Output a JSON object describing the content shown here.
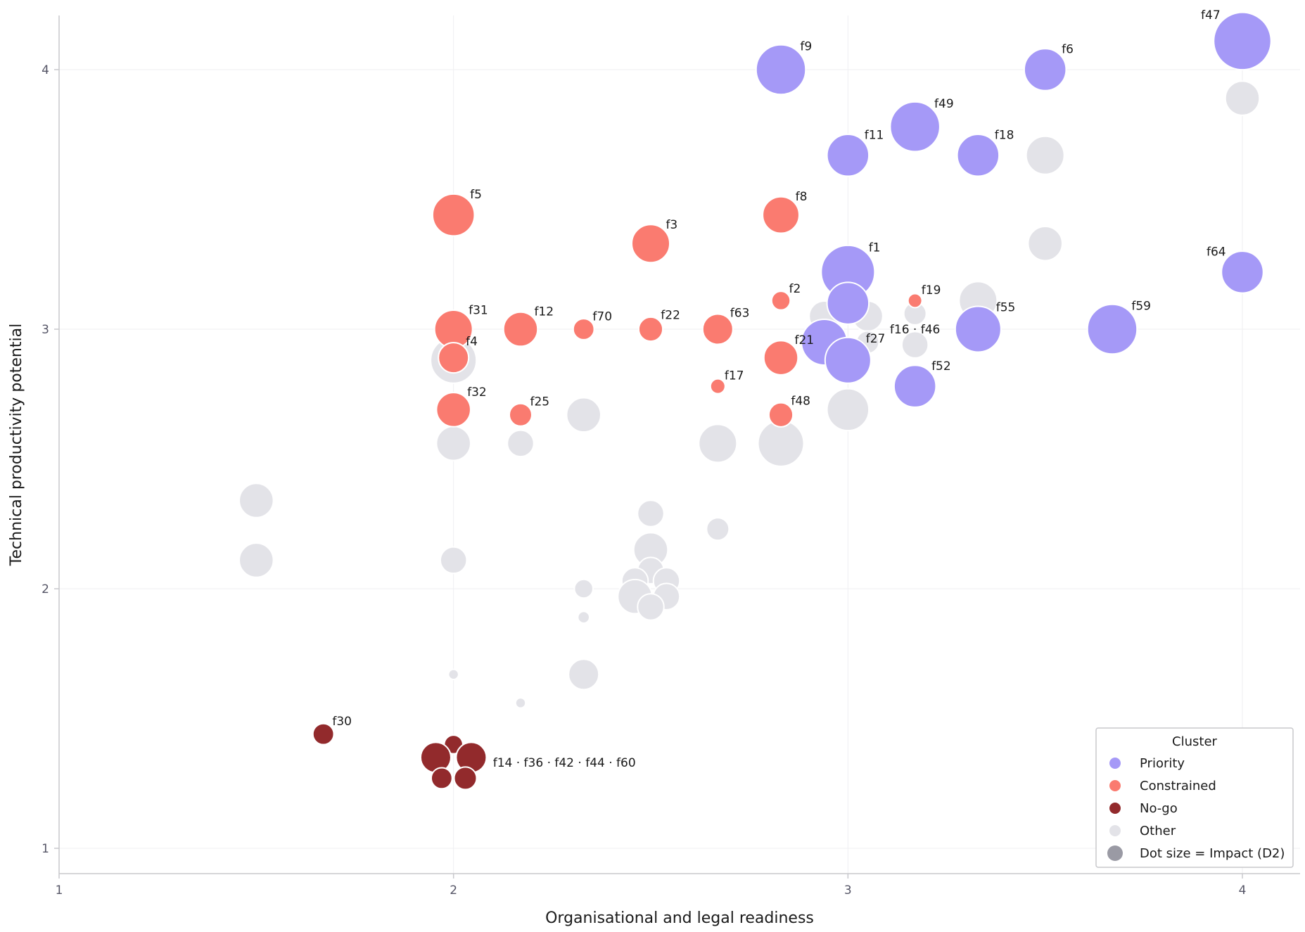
{
  "chart_data": {
    "type": "scatter",
    "xlabel": "Organisational and legal readiness",
    "ylabel": "Technical productivity potential",
    "xlim": [
      1,
      4.15
    ],
    "ylim": [
      0.9,
      4.2
    ],
    "xticks": [
      1,
      2,
      3,
      4
    ],
    "yticks": [
      1,
      2,
      3,
      4
    ],
    "grid": true,
    "size_encoding": "Impact (D2)",
    "colors": {
      "Priority": "#a599f7",
      "Constrained": "#fa7b70",
      "No-go": "#922a2c",
      "Other": "#e3e3e8"
    },
    "legend": {
      "title": "Cluster",
      "position": "bottom-right",
      "items": [
        {
          "label": "Priority",
          "cluster": "Priority"
        },
        {
          "label": "Constrained",
          "cluster": "Constrained"
        },
        {
          "label": "No-go",
          "cluster": "No-go"
        },
        {
          "label": "Other",
          "cluster": "Other"
        },
        {
          "label": "Dot size = Impact (D2)",
          "cluster": "size"
        }
      ]
    },
    "points": [
      {
        "x": 2.0,
        "y": 2.88,
        "s": 5,
        "cluster": "Other"
      },
      {
        "x": 2.0,
        "y": 2.56,
        "s": 3.5,
        "cluster": "Other"
      },
      {
        "x": 2.0,
        "y": 2.11,
        "s": 2.5,
        "cluster": "Other"
      },
      {
        "x": 2.0,
        "y": 1.67,
        "s": 0.4,
        "cluster": "Other"
      },
      {
        "x": 1.5,
        "y": 2.34,
        "s": 3.5,
        "cluster": "Other"
      },
      {
        "x": 1.5,
        "y": 2.11,
        "s": 3.5,
        "cluster": "Other"
      },
      {
        "x": 2.17,
        "y": 2.56,
        "s": 2.5,
        "cluster": "Other"
      },
      {
        "x": 2.17,
        "y": 1.56,
        "s": 0.4,
        "cluster": "Other"
      },
      {
        "x": 2.33,
        "y": 2.67,
        "s": 3.5,
        "cluster": "Other"
      },
      {
        "x": 2.33,
        "y": 2.0,
        "s": 1.5,
        "cluster": "Other"
      },
      {
        "x": 2.33,
        "y": 1.89,
        "s": 0.6,
        "cluster": "Other"
      },
      {
        "x": 2.33,
        "y": 1.67,
        "s": 3,
        "cluster": "Other"
      },
      {
        "x": 2.5,
        "y": 2.29,
        "s": 2.5,
        "cluster": "Other"
      },
      {
        "x": 2.5,
        "y": 2.15,
        "s": 3.5,
        "cluster": "Other"
      },
      {
        "x": 2.5,
        "y": 2.07,
        "s": 2.5,
        "cluster": "Other"
      },
      {
        "x": 2.46,
        "y": 2.03,
        "s": 2.5,
        "cluster": "Other"
      },
      {
        "x": 2.54,
        "y": 2.03,
        "s": 2.5,
        "cluster": "Other"
      },
      {
        "x": 2.46,
        "y": 1.97,
        "s": 3.5,
        "cluster": "Other"
      },
      {
        "x": 2.54,
        "y": 1.97,
        "s": 2.5,
        "cluster": "Other"
      },
      {
        "x": 2.5,
        "y": 1.93,
        "s": 2.5,
        "cluster": "Other"
      },
      {
        "x": 2.67,
        "y": 2.56,
        "s": 4,
        "cluster": "Other"
      },
      {
        "x": 2.67,
        "y": 2.23,
        "s": 2,
        "cluster": "Other"
      },
      {
        "x": 2.83,
        "y": 2.56,
        "s": 5,
        "cluster": "Other"
      },
      {
        "x": 2.94,
        "y": 3.05,
        "s": 3,
        "cluster": "Other"
      },
      {
        "x": 3.0,
        "y": 2.69,
        "s": 4.5,
        "cluster": "Other"
      },
      {
        "x": 3.05,
        "y": 3.05,
        "s": 3,
        "cluster": "Other"
      },
      {
        "x": 3.05,
        "y": 2.95,
        "s": 2,
        "cluster": "Other"
      },
      {
        "x": 3.17,
        "y": 3.06,
        "s": 2,
        "cluster": "Other"
      },
      {
        "x": 3.17,
        "y": 2.94,
        "s": 2.5,
        "cluster": "Other"
      },
      {
        "x": 3.33,
        "y": 3.11,
        "s": 4,
        "cluster": "Other"
      },
      {
        "x": 3.5,
        "y": 3.67,
        "s": 4,
        "cluster": "Other"
      },
      {
        "x": 3.5,
        "y": 3.33,
        "s": 3.5,
        "cluster": "Other"
      },
      {
        "x": 4.0,
        "y": 3.89,
        "s": 3.5,
        "cluster": "Other"
      },
      {
        "x": 4.0,
        "y": 4.11,
        "s": 6.5,
        "cluster": "Priority",
        "label": "f47",
        "lpos": "tl"
      },
      {
        "x": 2.83,
        "y": 4.0,
        "s": 5.5,
        "cluster": "Priority",
        "label": "f9",
        "lpos": "tr"
      },
      {
        "x": 3.5,
        "y": 4.0,
        "s": 4.5,
        "cluster": "Priority",
        "label": "f6",
        "lpos": "tr"
      },
      {
        "x": 3.17,
        "y": 3.78,
        "s": 5.5,
        "cluster": "Priority",
        "label": "f49",
        "lpos": "tr"
      },
      {
        "x": 3.0,
        "y": 3.67,
        "s": 4.5,
        "cluster": "Priority",
        "label": "f11",
        "lpos": "tr"
      },
      {
        "x": 3.33,
        "y": 3.67,
        "s": 4.5,
        "cluster": "Priority",
        "label": "f18",
        "lpos": "tr"
      },
      {
        "x": 4.0,
        "y": 3.22,
        "s": 4.5,
        "cluster": "Priority",
        "label": "f64",
        "lpos": "tl"
      },
      {
        "x": 3.0,
        "y": 3.22,
        "s": 6,
        "cluster": "Priority",
        "label": "f1",
        "lpos": "tr"
      },
      {
        "x": 3.0,
        "y": 3.1,
        "s": 4.5,
        "cluster": "Priority"
      },
      {
        "x": 3.33,
        "y": 3.0,
        "s": 5,
        "cluster": "Priority",
        "label": "f55",
        "lpos": "tr"
      },
      {
        "x": 3.67,
        "y": 3.0,
        "s": 5.5,
        "cluster": "Priority",
        "label": "f59",
        "lpos": "tr"
      },
      {
        "x": 2.94,
        "y": 2.95,
        "s": 5,
        "cluster": "Priority"
      },
      {
        "x": 3.0,
        "y": 2.88,
        "s": 5,
        "cluster": "Priority",
        "label": "f27",
        "lpos": "tr"
      },
      {
        "x": 3.17,
        "y": 2.78,
        "s": 4.5,
        "cluster": "Priority",
        "label": "f52",
        "lpos": "tr"
      },
      {
        "x": 2.0,
        "y": 3.44,
        "s": 4.5,
        "cluster": "Constrained",
        "label": "f5",
        "lpos": "tr"
      },
      {
        "x": 2.83,
        "y": 3.44,
        "s": 3.8,
        "cluster": "Constrained",
        "label": "f8",
        "lpos": "tr"
      },
      {
        "x": 2.5,
        "y": 3.33,
        "s": 4,
        "cluster": "Constrained",
        "label": "f3",
        "lpos": "tr"
      },
      {
        "x": 2.83,
        "y": 3.11,
        "s": 1.5,
        "cluster": "Constrained",
        "label": "f2",
        "lpos": "tr"
      },
      {
        "x": 3.17,
        "y": 3.11,
        "s": 0.9,
        "cluster": "Constrained",
        "label": "f19",
        "lpos": "tr"
      },
      {
        "x": 2.0,
        "y": 3.0,
        "s": 4,
        "cluster": "Constrained",
        "label": "f31",
        "lpos": "tr"
      },
      {
        "x": 2.17,
        "y": 3.0,
        "s": 3.5,
        "cluster": "Constrained",
        "label": "f12",
        "lpos": "tr"
      },
      {
        "x": 2.33,
        "y": 3.0,
        "s": 1.8,
        "cluster": "Constrained",
        "label": "f70",
        "lpos": "tr"
      },
      {
        "x": 2.5,
        "y": 3.0,
        "s": 2.2,
        "cluster": "Constrained",
        "label": "f22",
        "lpos": "tr"
      },
      {
        "x": 2.67,
        "y": 3.0,
        "s": 3,
        "cluster": "Constrained",
        "label": "f63",
        "lpos": "tr"
      },
      {
        "x": 2.0,
        "y": 2.89,
        "s": 3,
        "cluster": "Constrained",
        "label": "f4",
        "lpos": "tr"
      },
      {
        "x": 2.83,
        "y": 2.89,
        "s": 3.5,
        "cluster": "Constrained",
        "label": "f21",
        "lpos": "tr"
      },
      {
        "x": 2.67,
        "y": 2.78,
        "s": 1,
        "cluster": "Constrained",
        "label": "f17",
        "lpos": "tr"
      },
      {
        "x": 2.0,
        "y": 2.69,
        "s": 3.5,
        "cluster": "Constrained",
        "label": "f32",
        "lpos": "tr"
      },
      {
        "x": 2.17,
        "y": 2.67,
        "s": 2,
        "cluster": "Constrained",
        "label": "f25",
        "lpos": "tr"
      },
      {
        "x": 2.83,
        "y": 2.67,
        "s": 2.2,
        "cluster": "Constrained",
        "label": "f48",
        "lpos": "tr"
      },
      {
        "x": 1.67,
        "y": 1.44,
        "s": 1.8,
        "cluster": "No-go",
        "label": "f30",
        "lpos": "tr"
      },
      {
        "x": 2.0,
        "y": 1.4,
        "s": 1.5,
        "cluster": "No-go"
      },
      {
        "x": 1.955,
        "y": 1.35,
        "s": 3,
        "cluster": "No-go"
      },
      {
        "x": 2.045,
        "y": 1.35,
        "s": 3,
        "cluster": "No-go"
      },
      {
        "x": 1.97,
        "y": 1.27,
        "s": 1.8,
        "cluster": "No-go"
      },
      {
        "x": 2.03,
        "y": 1.27,
        "s": 2,
        "cluster": "No-go"
      }
    ],
    "annotations": [
      {
        "text": "f16 · f46",
        "x": 3.17,
        "y": 3.0,
        "anchor": "middle"
      },
      {
        "text": "f14 · f36 · f42 · f44 · f60",
        "x": 2.1,
        "y": 1.33,
        "anchor": "start"
      }
    ]
  }
}
